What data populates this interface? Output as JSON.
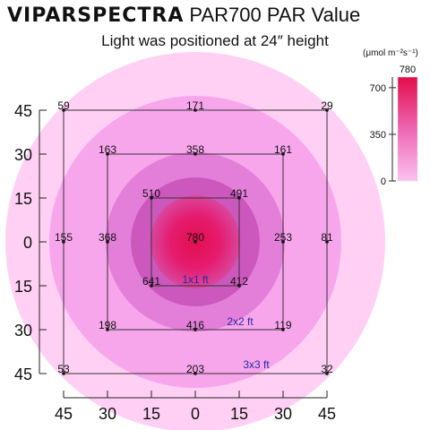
{
  "header": {
    "brand": "VIPARSPECTRA",
    "model": "PAR700 PAR Value",
    "subtitle": "Light was positioned at 24″ height"
  },
  "chart_data": {
    "type": "heatmap",
    "title": "PAR700 PAR Value",
    "unit": "(μmol m⁻²s⁻¹)",
    "x_ticks": [
      "45",
      "30",
      "15",
      "0",
      "15",
      "30",
      "45"
    ],
    "y_ticks": [
      "45",
      "30",
      "15",
      "0",
      "15",
      "30",
      "45"
    ],
    "grid_labels": [
      "1x1 ft",
      "2x2 ft",
      "3x3 ft"
    ],
    "points": [
      {
        "x": -45,
        "y": 45,
        "value": 59
      },
      {
        "x": 0,
        "y": 45,
        "value": 171
      },
      {
        "x": 45,
        "y": 45,
        "value": 29
      },
      {
        "x": -30,
        "y": 30,
        "value": 163
      },
      {
        "x": 0,
        "y": 30,
        "value": 358
      },
      {
        "x": 30,
        "y": 30,
        "value": 161
      },
      {
        "x": -15,
        "y": 15,
        "value": 510
      },
      {
        "x": 15,
        "y": 15,
        "value": 491
      },
      {
        "x": -45,
        "y": 0,
        "value": 155
      },
      {
        "x": -30,
        "y": 0,
        "value": 368
      },
      {
        "x": 0,
        "y": 0,
        "value": 780
      },
      {
        "x": 30,
        "y": 0,
        "value": 253
      },
      {
        "x": 45,
        "y": 0,
        "value": 81
      },
      {
        "x": -15,
        "y": -15,
        "value": 641
      },
      {
        "x": 15,
        "y": -15,
        "value": 412
      },
      {
        "x": -30,
        "y": -30,
        "value": 198
      },
      {
        "x": 0,
        "y": -30,
        "value": 416
      },
      {
        "x": 30,
        "y": -30,
        "value": 119
      },
      {
        "x": -45,
        "y": -45,
        "value": 53
      },
      {
        "x": 0,
        "y": -45,
        "value": 203
      },
      {
        "x": 45,
        "y": -45,
        "value": 32
      }
    ],
    "colorbar": {
      "max_label": "780",
      "ticks": [
        "700",
        "350",
        "0"
      ],
      "tick_values": [
        700,
        350,
        0
      ],
      "range": [
        0,
        780
      ]
    },
    "colors": {
      "ring1": "#ffd0f4",
      "ring2": "#f8a6ec",
      "ring3": "#e47fd9",
      "ring4": "#cc58be",
      "center": "#e51565",
      "grid_label": "#2a2aa0"
    }
  }
}
